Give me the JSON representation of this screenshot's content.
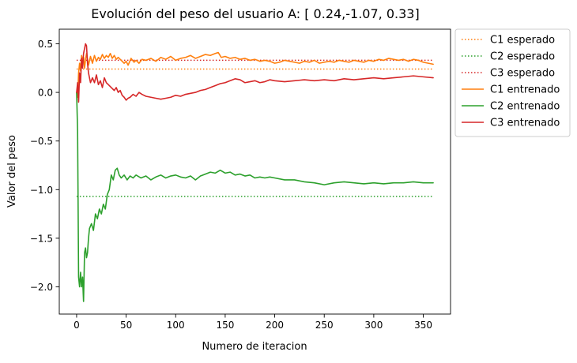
{
  "chart_data": {
    "type": "line",
    "title": "Evolución del peso del usuario A: [ 0.24,-1.07, 0.33]",
    "xlabel": "Numero de iteracion",
    "ylabel": "Valor del peso",
    "xlim": [
      -17.5,
      377.5
    ],
    "ylim": [
      -2.28,
      0.65
    ],
    "xticks": [
      0,
      50,
      100,
      150,
      200,
      250,
      300,
      350
    ],
    "yticks": [
      -2.0,
      -1.5,
      -1.0,
      -0.5,
      0.0,
      0.5
    ],
    "xtick_labels": [
      "0",
      "50",
      "100",
      "150",
      "200",
      "250",
      "300",
      "350"
    ],
    "ytick_labels": [
      "−2.0",
      "−1.5",
      "−1.0",
      "−0.5",
      "0.0",
      "0.5"
    ],
    "grid": false,
    "legend_position": "outside-right-top",
    "series": [
      {
        "name": "C1 esperado",
        "color": "#ff7f0e",
        "style": "dotted",
        "x": [
          0,
          360
        ],
        "y": [
          0.24,
          0.24
        ]
      },
      {
        "name": "C2 esperado",
        "color": "#2ca02c",
        "style": "dotted",
        "x": [
          0,
          360
        ],
        "y": [
          -1.07,
          -1.07
        ]
      },
      {
        "name": "C3 esperado",
        "color": "#d62728",
        "style": "dotted",
        "x": [
          0,
          360
        ],
        "y": [
          0.33,
          0.33
        ]
      },
      {
        "name": "C1 entrenado",
        "color": "#ff7f0e",
        "style": "solid",
        "x": [
          0,
          1,
          2,
          3,
          4,
          5,
          6,
          7,
          8,
          9,
          10,
          12,
          14,
          16,
          18,
          20,
          22,
          24,
          26,
          28,
          30,
          32,
          34,
          36,
          38,
          40,
          42,
          45,
          48,
          50,
          52,
          55,
          58,
          60,
          63,
          66,
          70,
          75,
          80,
          85,
          90,
          95,
          100,
          105,
          110,
          115,
          120,
          125,
          130,
          135,
          140,
          143,
          146,
          150,
          155,
          160,
          165,
          170,
          175,
          180,
          185,
          190,
          195,
          200,
          205,
          210,
          215,
          220,
          225,
          230,
          235,
          240,
          245,
          250,
          255,
          260,
          265,
          270,
          275,
          280,
          285,
          290,
          295,
          300,
          305,
          310,
          315,
          320,
          325,
          330,
          335,
          340,
          345,
          350,
          355,
          360
        ],
        "y": [
          0.0,
          -0.05,
          0.2,
          0.3,
          0.22,
          0.38,
          0.33,
          0.36,
          0.25,
          0.34,
          0.4,
          0.28,
          0.37,
          0.3,
          0.38,
          0.32,
          0.36,
          0.34,
          0.39,
          0.35,
          0.38,
          0.36,
          0.4,
          0.35,
          0.38,
          0.34,
          0.36,
          0.33,
          0.3,
          0.32,
          0.28,
          0.35,
          0.31,
          0.33,
          0.3,
          0.34,
          0.33,
          0.35,
          0.32,
          0.36,
          0.34,
          0.37,
          0.33,
          0.35,
          0.36,
          0.38,
          0.35,
          0.37,
          0.39,
          0.38,
          0.4,
          0.41,
          0.36,
          0.37,
          0.35,
          0.36,
          0.34,
          0.35,
          0.33,
          0.34,
          0.32,
          0.33,
          0.32,
          0.3,
          0.31,
          0.33,
          0.32,
          0.31,
          0.3,
          0.32,
          0.31,
          0.33,
          0.3,
          0.31,
          0.32,
          0.31,
          0.33,
          0.32,
          0.31,
          0.33,
          0.32,
          0.31,
          0.33,
          0.32,
          0.34,
          0.33,
          0.35,
          0.34,
          0.33,
          0.34,
          0.32,
          0.34,
          0.33,
          0.31,
          0.3,
          0.29
        ]
      },
      {
        "name": "C2 entrenado",
        "color": "#2ca02c",
        "style": "solid",
        "x": [
          0,
          1,
          2,
          3,
          4,
          5,
          6,
          7,
          8,
          9,
          10,
          11,
          12,
          13,
          15,
          17,
          19,
          21,
          23,
          25,
          27,
          29,
          31,
          33,
          35,
          37,
          39,
          41,
          43,
          45,
          48,
          51,
          54,
          57,
          60,
          65,
          70,
          75,
          80,
          85,
          90,
          95,
          100,
          105,
          110,
          115,
          120,
          125,
          130,
          135,
          140,
          145,
          150,
          155,
          160,
          165,
          170,
          175,
          180,
          185,
          190,
          195,
          200,
          210,
          220,
          230,
          240,
          250,
          260,
          270,
          280,
          290,
          300,
          310,
          320,
          330,
          340,
          350,
          360
        ],
        "y": [
          0.0,
          -0.4,
          -1.9,
          -2.0,
          -1.85,
          -2.0,
          -1.9,
          -2.15,
          -1.65,
          -1.6,
          -1.7,
          -1.65,
          -1.5,
          -1.4,
          -1.35,
          -1.42,
          -1.25,
          -1.3,
          -1.2,
          -1.25,
          -1.15,
          -1.2,
          -1.05,
          -1.0,
          -0.85,
          -0.9,
          -0.8,
          -0.78,
          -0.85,
          -0.88,
          -0.85,
          -0.9,
          -0.86,
          -0.88,
          -0.85,
          -0.88,
          -0.86,
          -0.9,
          -0.87,
          -0.85,
          -0.88,
          -0.86,
          -0.85,
          -0.87,
          -0.88,
          -0.86,
          -0.9,
          -0.86,
          -0.84,
          -0.82,
          -0.83,
          -0.8,
          -0.83,
          -0.82,
          -0.85,
          -0.84,
          -0.86,
          -0.85,
          -0.88,
          -0.87,
          -0.88,
          -0.87,
          -0.88,
          -0.9,
          -0.9,
          -0.92,
          -0.93,
          -0.95,
          -0.93,
          -0.92,
          -0.93,
          -0.94,
          -0.93,
          -0.94,
          -0.93,
          -0.93,
          -0.92,
          -0.93,
          -0.93
        ]
      },
      {
        "name": "C3 entrenado",
        "color": "#d62728",
        "style": "solid",
        "x": [
          0,
          1,
          2,
          3,
          4,
          5,
          6,
          7,
          8,
          9,
          10,
          11,
          12,
          14,
          16,
          18,
          20,
          22,
          24,
          26,
          28,
          30,
          32,
          34,
          36,
          38,
          40,
          42,
          44,
          46,
          48,
          50,
          52,
          54,
          57,
          60,
          63,
          66,
          70,
          75,
          80,
          85,
          90,
          95,
          100,
          105,
          110,
          115,
          120,
          125,
          130,
          135,
          140,
          145,
          150,
          155,
          160,
          165,
          170,
          175,
          180,
          185,
          190,
          195,
          200,
          210,
          220,
          230,
          240,
          250,
          260,
          270,
          280,
          290,
          300,
          310,
          320,
          330,
          340,
          350,
          360
        ],
        "y": [
          0.0,
          0.1,
          -0.1,
          0.2,
          0.1,
          0.35,
          0.25,
          0.4,
          0.45,
          0.5,
          0.48,
          0.3,
          0.2,
          0.1,
          0.15,
          0.1,
          0.18,
          0.08,
          0.12,
          0.05,
          0.15,
          0.1,
          0.08,
          0.06,
          0.04,
          0.02,
          0.05,
          0.0,
          0.02,
          -0.03,
          -0.05,
          -0.08,
          -0.06,
          -0.05,
          -0.02,
          -0.04,
          0.0,
          -0.02,
          -0.04,
          -0.05,
          -0.06,
          -0.07,
          -0.06,
          -0.05,
          -0.03,
          -0.04,
          -0.02,
          -0.01,
          0.0,
          0.02,
          0.03,
          0.05,
          0.07,
          0.09,
          0.1,
          0.12,
          0.14,
          0.13,
          0.1,
          0.11,
          0.12,
          0.1,
          0.11,
          0.13,
          0.12,
          0.11,
          0.12,
          0.13,
          0.12,
          0.13,
          0.12,
          0.14,
          0.13,
          0.14,
          0.15,
          0.14,
          0.15,
          0.16,
          0.17,
          0.16,
          0.15
        ]
      }
    ]
  }
}
